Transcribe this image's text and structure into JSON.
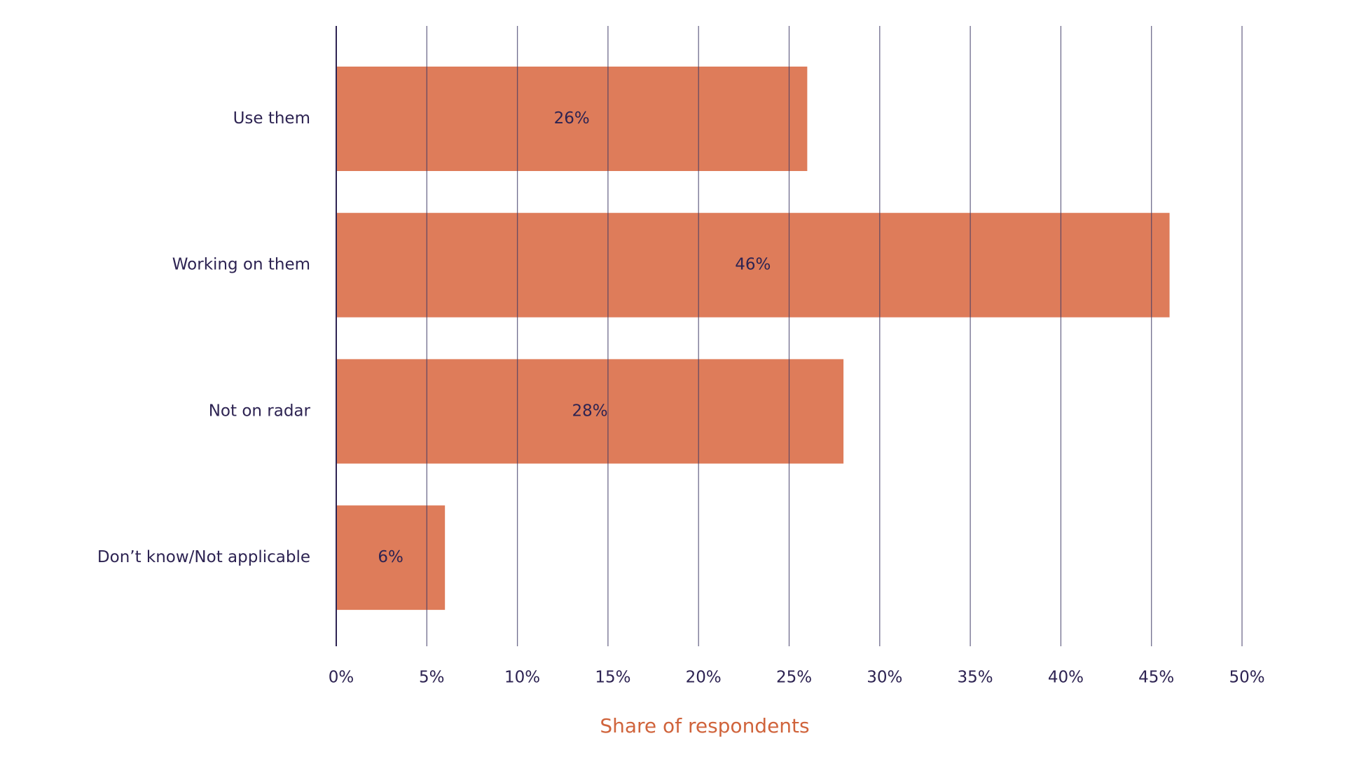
{
  "chart_data": {
    "type": "bar",
    "orientation": "horizontal",
    "x_label": "Share of respondents",
    "categories": [
      "Use them",
      "Working on them",
      "Not on radar",
      "Don’t know/Not applicable"
    ],
    "values": [
      26,
      46,
      28,
      6
    ],
    "value_labels": [
      "26%",
      "46%",
      "28%",
      "6%"
    ],
    "color": "#de7c5a",
    "xlim": [
      0,
      50
    ],
    "xticks": [
      {
        "value": 0,
        "label": "0%"
      },
      {
        "value": 5,
        "label": "5%"
      },
      {
        "value": 10,
        "label": "10%"
      },
      {
        "value": 15,
        "label": "15%"
      },
      {
        "value": 20,
        "label": "20%"
      },
      {
        "value": 25,
        "label": "25%"
      },
      {
        "value": 30,
        "label": "30%"
      },
      {
        "value": 35,
        "label": "35%"
      },
      {
        "value": 40,
        "label": "40%"
      },
      {
        "value": 45,
        "label": "45%"
      },
      {
        "value": 50,
        "label": "50%"
      }
    ],
    "grid": true
  }
}
